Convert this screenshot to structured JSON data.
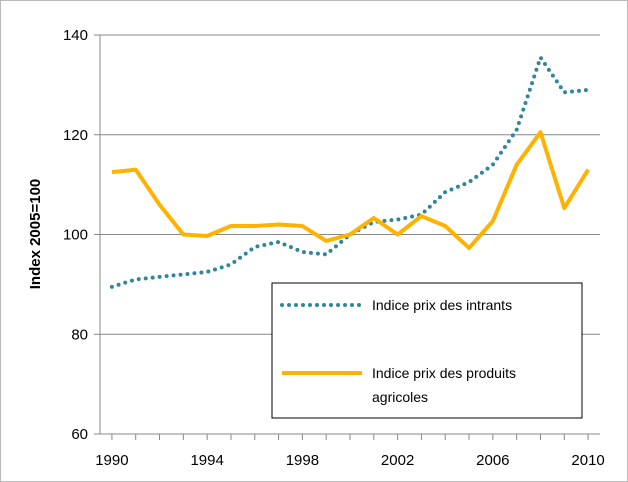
{
  "chart_data": {
    "type": "line",
    "y_label": "Index 2005=100",
    "x": [
      1990,
      1991,
      1992,
      1993,
      1994,
      1995,
      1996,
      1997,
      1998,
      1999,
      2000,
      2001,
      2002,
      2003,
      2004,
      2005,
      2006,
      2007,
      2008,
      2009,
      2010
    ],
    "series": [
      {
        "name": "Indice prix des intrants",
        "color": "#31859c",
        "style": "dotted",
        "values": [
          89.5,
          91,
          91.5,
          92,
          92.5,
          94,
          97.5,
          98.5,
          96.5,
          96,
          100,
          102.5,
          103,
          104,
          108.5,
          110.5,
          114,
          121,
          135.5,
          128.5,
          129
        ]
      },
      {
        "name": "Indice prix des produits agricoles",
        "color": "#ffb200",
        "style": "solid",
        "values": [
          112.5,
          113,
          106,
          100,
          99.7,
          101.7,
          101.7,
          102,
          101.7,
          98.7,
          100,
          103.3,
          100,
          103.7,
          101.7,
          97.3,
          102.7,
          114,
          120.5,
          105.3,
          113
        ]
      }
    ],
    "xlim": [
      1989.5,
      2010.5
    ],
    "xticks": [
      1990,
      1994,
      1998,
      2002,
      2006,
      2010
    ],
    "ylim": [
      60,
      140
    ],
    "yticks": [
      60,
      80,
      100,
      120,
      140
    ],
    "grid": true,
    "legend": "lower right"
  }
}
